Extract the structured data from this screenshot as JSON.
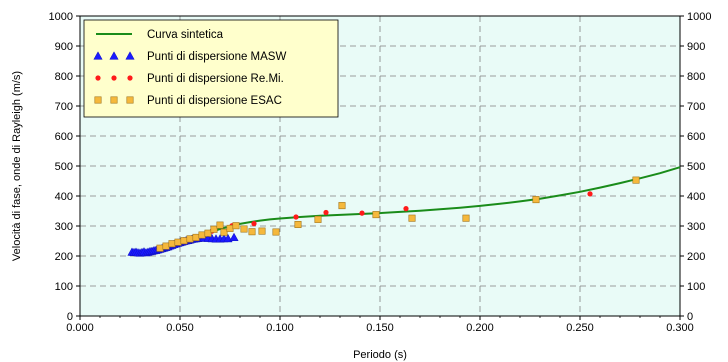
{
  "chart_data": {
    "type": "scatter",
    "xlabel": "Periodo (s)",
    "ylabel": "Velocità di fase, onde di Rayleigh (m/s)",
    "xlim": [
      0,
      0.3
    ],
    "ylim": [
      0,
      1000
    ],
    "x_ticks": [
      "0.000",
      "0.050",
      "0.100",
      "0.150",
      "0.200",
      "0.250",
      "0.300"
    ],
    "y_ticks": [
      "0",
      "100",
      "200",
      "300",
      "400",
      "500",
      "600",
      "700",
      "800",
      "900",
      "1000"
    ],
    "grid": true,
    "secondary_y_axis": true,
    "legend_position": "top-left",
    "background_color": "#e9fbf7",
    "series": [
      {
        "name": "Curva sintetica",
        "kind": "line",
        "color": "#1a8c1a",
        "x": [
          0.025,
          0.03,
          0.035,
          0.04,
          0.045,
          0.05,
          0.055,
          0.06,
          0.065,
          0.07,
          0.075,
          0.08,
          0.085,
          0.09,
          0.095,
          0.1,
          0.11,
          0.12,
          0.13,
          0.14,
          0.15,
          0.16,
          0.17,
          0.18,
          0.19,
          0.2,
          0.21,
          0.22,
          0.23,
          0.24,
          0.25,
          0.26,
          0.27,
          0.28,
          0.29,
          0.3
        ],
        "y": [
          207,
          213,
          220,
          228,
          237,
          246,
          257,
          268,
          279,
          290,
          299,
          307,
          313,
          318,
          322,
          325,
          330,
          334,
          337,
          340,
          343,
          347,
          351,
          356,
          361,
          367,
          374,
          382,
          391,
          402,
          414,
          428,
          443,
          459,
          476,
          496
        ]
      },
      {
        "name": "Punti di dispersione MASW",
        "kind": "marker",
        "marker": "triangle",
        "color": "#1a1aff",
        "x": [
          0.026,
          0.027,
          0.028,
          0.029,
          0.03,
          0.031,
          0.032,
          0.033,
          0.034,
          0.035,
          0.036,
          0.037,
          0.038,
          0.039,
          0.04,
          0.041,
          0.042,
          0.043,
          0.044,
          0.045,
          0.046,
          0.047,
          0.048,
          0.049,
          0.05,
          0.051,
          0.052,
          0.053,
          0.054,
          0.055,
          0.056,
          0.057,
          0.058,
          0.059,
          0.06,
          0.062,
          0.064,
          0.066,
          0.068,
          0.07,
          0.072,
          0.074,
          0.077
        ],
        "y": [
          213,
          212,
          213,
          211,
          210,
          212,
          214,
          211,
          213,
          215,
          216,
          218,
          219,
          221,
          223,
          225,
          227,
          229,
          231,
          234,
          236,
          239,
          241,
          243,
          245,
          247,
          249,
          251,
          252,
          254,
          256,
          257,
          258,
          259,
          260,
          260,
          259,
          258,
          257,
          257,
          258,
          258,
          262
        ]
      },
      {
        "name": "Punti di dispersione Re.Mi.",
        "kind": "marker",
        "marker": "circle",
        "color": "#ff1a1a",
        "x": [
          0.058,
          0.066,
          0.076,
          0.087,
          0.108,
          0.123,
          0.141,
          0.163,
          0.255
        ],
        "y": [
          265,
          283,
          301,
          308,
          330,
          345,
          343,
          358,
          407
        ]
      },
      {
        "name": "Punti di dispersione ESAC",
        "kind": "marker",
        "marker": "square",
        "color": "#f5b83c",
        "x": [
          0.04,
          0.043,
          0.046,
          0.049,
          0.052,
          0.055,
          0.058,
          0.061,
          0.064,
          0.067,
          0.07,
          0.072,
          0.075,
          0.078,
          0.082,
          0.086,
          0.091,
          0.098,
          0.109,
          0.119,
          0.131,
          0.148,
          0.166,
          0.193,
          0.228,
          0.278
        ],
        "y": [
          226,
          233,
          241,
          246,
          251,
          257,
          262,
          270,
          276,
          289,
          303,
          279,
          292,
          301,
          290,
          281,
          283,
          280,
          305,
          322,
          368,
          338,
          326,
          326,
          388,
          453
        ]
      }
    ]
  }
}
